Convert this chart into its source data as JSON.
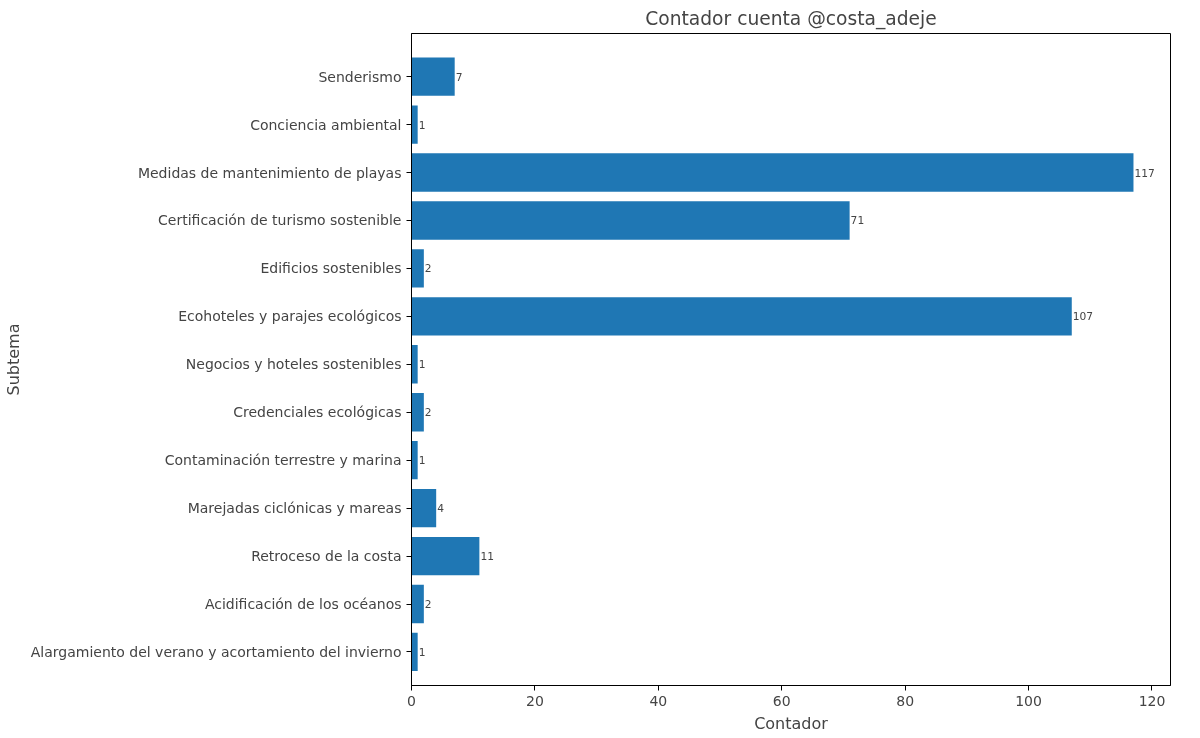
{
  "chart_data": {
    "type": "bar",
    "orientation": "horizontal",
    "title": "Contador cuenta @costa_adeje",
    "xlabel": "Contador",
    "ylabel": "Subtema",
    "categories": [
      "Senderismo",
      "Conciencia ambiental",
      "Medidas de mantenimiento de playas",
      "Certificación de turismo sostenible",
      "Edificios sostenibles",
      "Ecohoteles y parajes ecológicos",
      "Negocios y hoteles sostenibles",
      "Credenciales ecológicas",
      "Contaminación terrestre y marina",
      "Marejadas ciclónicas y mareas",
      "Retroceso de la costa",
      "Acidificación de los océanos",
      "Alargamiento del verano y acortamiento del invierno"
    ],
    "values": [
      7,
      1,
      117,
      71,
      2,
      107,
      1,
      2,
      1,
      4,
      11,
      2,
      1
    ],
    "color": "#1f77b4",
    "xlim": [
      0,
      123
    ],
    "xticks": [
      0,
      20,
      40,
      60,
      80,
      100,
      120
    ],
    "data_labels": true,
    "grid": false
  }
}
